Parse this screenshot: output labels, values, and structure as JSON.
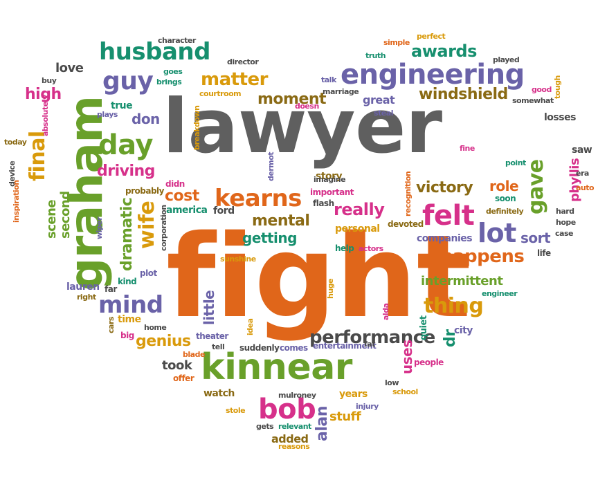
{
  "colors": {
    "gray": "#5f5f5f",
    "orange": "#e0661a",
    "green": "#69a02a",
    "purple": "#6a62a8",
    "pink": "#d6308a",
    "teal": "#168f6e",
    "gold": "#d99a0b",
    "brown": "#8a6a14",
    "dark": "#4a4a4a"
  },
  "words": [
    {
      "text": "lawyer",
      "color": "gray",
      "vertical": false
    },
    {
      "text": "fight",
      "color": "orange",
      "vertical": false
    },
    {
      "text": "graham",
      "color": "green",
      "vertical": true
    },
    {
      "text": "kinnear",
      "color": "green",
      "vertical": false
    },
    {
      "text": "engineering",
      "color": "purple",
      "vertical": false
    },
    {
      "text": "husband",
      "color": "teal",
      "vertical": false
    },
    {
      "text": "guy",
      "color": "purple",
      "vertical": false
    },
    {
      "text": "matter",
      "color": "gold",
      "vertical": false
    },
    {
      "text": "day",
      "color": "green",
      "vertical": false
    },
    {
      "text": "final",
      "color": "gold",
      "vertical": true
    },
    {
      "text": "wife",
      "color": "gold",
      "vertical": true
    },
    {
      "text": "felt",
      "color": "pink",
      "vertical": false
    },
    {
      "text": "lot",
      "color": "purple",
      "vertical": false
    },
    {
      "text": "gave",
      "color": "green",
      "vertical": true
    },
    {
      "text": "kearns",
      "color": "orange",
      "vertical": false
    },
    {
      "text": "bob",
      "color": "pink",
      "vertical": false
    },
    {
      "text": "mind",
      "color": "purple",
      "vertical": false
    },
    {
      "text": "thing",
      "color": "gold",
      "vertical": false
    },
    {
      "text": "happens",
      "color": "orange",
      "vertical": false
    },
    {
      "text": "performance",
      "color": "dark",
      "vertical": false
    },
    {
      "text": "moment",
      "color": "brown",
      "vertical": false
    },
    {
      "text": "windshield",
      "color": "brown",
      "vertical": false
    },
    {
      "text": "awards",
      "color": "teal",
      "vertical": false
    },
    {
      "text": "driving",
      "color": "pink",
      "vertical": false
    },
    {
      "text": "cost",
      "color": "orange",
      "vertical": false
    },
    {
      "text": "mental",
      "color": "brown",
      "vertical": false
    },
    {
      "text": "really",
      "color": "pink",
      "vertical": false
    },
    {
      "text": "victory",
      "color": "brown",
      "vertical": false
    },
    {
      "text": "role",
      "color": "orange",
      "vertical": false
    },
    {
      "text": "sort",
      "color": "purple",
      "vertical": false
    },
    {
      "text": "intermittent",
      "color": "green",
      "vertical": false
    },
    {
      "text": "genius",
      "color": "gold",
      "vertical": false
    },
    {
      "text": "dramatic",
      "color": "green",
      "vertical": true
    },
    {
      "text": "scene",
      "color": "green",
      "vertical": true
    },
    {
      "text": "second",
      "color": "green",
      "vertical": true
    },
    {
      "text": "high",
      "color": "pink",
      "vertical": false
    },
    {
      "text": "love",
      "color": "dark",
      "vertical": false
    },
    {
      "text": "don",
      "color": "purple",
      "vertical": false
    },
    {
      "text": "getting",
      "color": "teal",
      "vertical": false
    },
    {
      "text": "little",
      "color": "purple",
      "vertical": true
    },
    {
      "text": "phyllis",
      "color": "pink",
      "vertical": true
    },
    {
      "text": "alan",
      "color": "purple",
      "vertical": true
    },
    {
      "text": "took",
      "color": "dark",
      "vertical": false
    },
    {
      "text": "dr",
      "color": "teal",
      "vertical": true
    },
    {
      "text": "uses",
      "color": "pink",
      "vertical": true
    },
    {
      "text": "stuff",
      "color": "gold",
      "vertical": false
    },
    {
      "text": "added",
      "color": "brown",
      "vertical": false
    },
    {
      "text": "watch",
      "color": "brown",
      "vertical": false
    },
    {
      "text": "great",
      "color": "purple",
      "vertical": false
    },
    {
      "text": "losses",
      "color": "dark",
      "vertical": false
    },
    {
      "text": "saw",
      "color": "dark",
      "vertical": false
    },
    {
      "text": "story",
      "color": "brown",
      "vertical": false
    },
    {
      "text": "personal",
      "color": "gold",
      "vertical": false
    },
    {
      "text": "companies",
      "color": "purple",
      "vertical": false
    },
    {
      "text": "america",
      "color": "teal",
      "vertical": false
    },
    {
      "text": "ford",
      "color": "dark",
      "vertical": false
    },
    {
      "text": "time",
      "color": "gold",
      "vertical": false
    },
    {
      "text": "lauren",
      "color": "purple",
      "vertical": false
    },
    {
      "text": "true",
      "color": "teal",
      "vertical": false
    },
    {
      "text": "city",
      "color": "purple",
      "vertical": false
    },
    {
      "text": "theater",
      "color": "purple",
      "vertical": false
    },
    {
      "text": "tell",
      "color": "dark",
      "vertical": false
    },
    {
      "text": "suddenly",
      "color": "dark",
      "vertical": false
    },
    {
      "text": "comes",
      "color": "purple",
      "vertical": false
    },
    {
      "text": "years",
      "color": "gold",
      "vertical": false
    },
    {
      "text": "people",
      "color": "pink",
      "vertical": false
    },
    {
      "text": "entertainment",
      "color": "purple",
      "vertical": false
    },
    {
      "text": "fat",
      "color": "dark",
      "vertical": false
    },
    {
      "text": "quiet",
      "color": "teal",
      "vertical": true
    },
    {
      "text": "life",
      "color": "dark",
      "vertical": false
    },
    {
      "text": "case",
      "color": "dark",
      "vertical": false
    },
    {
      "text": "hope",
      "color": "dark",
      "vertical": false
    },
    {
      "text": "hard",
      "color": "dark",
      "vertical": false
    },
    {
      "text": "soon",
      "color": "teal",
      "vertical": false
    },
    {
      "text": "definitely",
      "color": "brown",
      "vertical": false
    },
    {
      "text": "engineer",
      "color": "teal",
      "vertical": false
    },
    {
      "text": "help",
      "color": "teal",
      "vertical": false
    },
    {
      "text": "actors",
      "color": "pink",
      "vertical": false
    },
    {
      "text": "devoted",
      "color": "brown",
      "vertical": false
    },
    {
      "text": "flash",
      "color": "dark",
      "vertical": false
    },
    {
      "text": "important",
      "color": "pink",
      "vertical": false
    },
    {
      "text": "imagine",
      "color": "dark",
      "vertical": false
    },
    {
      "text": "probably",
      "color": "brown",
      "vertical": false
    },
    {
      "text": "didn",
      "color": "pink",
      "vertical": false
    },
    {
      "text": "plot",
      "color": "purple",
      "vertical": false
    },
    {
      "text": "kind",
      "color": "teal",
      "vertical": false
    },
    {
      "text": "far",
      "color": "dark",
      "vertical": false
    },
    {
      "text": "right",
      "color": "brown",
      "vertical": false
    },
    {
      "text": "big",
      "color": "pink",
      "vertical": false
    },
    {
      "text": "home",
      "color": "dark",
      "vertical": false
    },
    {
      "text": "blade",
      "color": "orange",
      "vertical": false
    },
    {
      "text": "offer",
      "color": "orange",
      "vertical": false
    },
    {
      "text": "cars",
      "color": "brown",
      "vertical": true
    },
    {
      "text": "sunshine",
      "color": "gold",
      "vertical": false
    },
    {
      "text": "corporation",
      "color": "dark",
      "vertical": true
    },
    {
      "text": "wiper",
      "color": "purple",
      "vertical": true
    },
    {
      "text": "inspiration",
      "color": "orange",
      "vertical": true
    },
    {
      "text": "device",
      "color": "dark",
      "vertical": true
    },
    {
      "text": "today",
      "color": "brown",
      "vertical": false
    },
    {
      "text": "absolutely",
      "color": "pink",
      "vertical": true
    },
    {
      "text": "buy",
      "color": "dark",
      "vertical": false
    },
    {
      "text": "character",
      "color": "dark",
      "vertical": false
    },
    {
      "text": "goes",
      "color": "teal",
      "vertical": false
    },
    {
      "text": "brings",
      "color": "teal",
      "vertical": false
    },
    {
      "text": "director",
      "color": "dark",
      "vertical": false
    },
    {
      "text": "courtroom",
      "color": "gold",
      "vertical": false
    },
    {
      "text": "plays",
      "color": "purple",
      "vertical": false
    },
    {
      "text": "breakdown",
      "color": "gold",
      "vertical": true
    },
    {
      "text": "truth",
      "color": "teal",
      "vertical": false
    },
    {
      "text": "simple",
      "color": "orange",
      "vertical": false
    },
    {
      "text": "perfect",
      "color": "gold",
      "vertical": false
    },
    {
      "text": "played",
      "color": "dark",
      "vertical": false
    },
    {
      "text": "talk",
      "color": "purple",
      "vertical": false
    },
    {
      "text": "marriage",
      "color": "dark",
      "vertical": false
    },
    {
      "text": "doesn",
      "color": "pink",
      "vertical": false
    },
    {
      "text": "steal",
      "color": "purple",
      "vertical": false
    },
    {
      "text": "good",
      "color": "pink",
      "vertical": false
    },
    {
      "text": "somewhat",
      "color": "dark",
      "vertical": false
    },
    {
      "text": "tough",
      "color": "gold",
      "vertical": true
    },
    {
      "text": "fine",
      "color": "pink",
      "vertical": false
    },
    {
      "text": "point",
      "color": "teal",
      "vertical": false
    },
    {
      "text": "era",
      "color": "dark",
      "vertical": false
    },
    {
      "text": "auto",
      "color": "orange",
      "vertical": false
    },
    {
      "text": "dermot",
      "color": "purple",
      "vertical": true
    },
    {
      "text": "recognition",
      "color": "orange",
      "vertical": true
    },
    {
      "text": "huge",
      "color": "gold",
      "vertical": true
    },
    {
      "text": "alda",
      "color": "pink",
      "vertical": true
    },
    {
      "text": "idea",
      "color": "gold",
      "vertical": true
    },
    {
      "text": "mulroney",
      "color": "dark",
      "vertical": false
    },
    {
      "text": "injury",
      "color": "purple",
      "vertical": false
    },
    {
      "text": "low",
      "color": "dark",
      "vertical": false
    },
    {
      "text": "school",
      "color": "gold",
      "vertical": false
    },
    {
      "text": "stole",
      "color": "gold",
      "vertical": false
    },
    {
      "text": "gets",
      "color": "dark",
      "vertical": false
    },
    {
      "text": "relevant",
      "color": "teal",
      "vertical": false
    },
    {
      "text": "reasons",
      "color": "gold",
      "vertical": false
    }
  ]
}
